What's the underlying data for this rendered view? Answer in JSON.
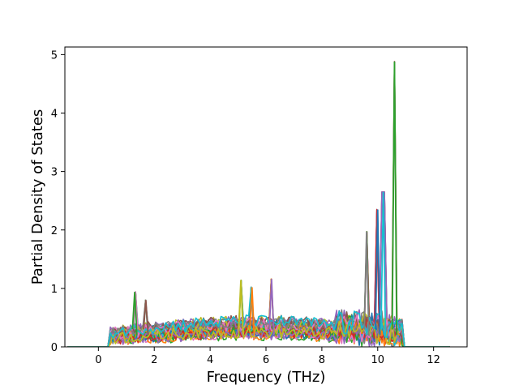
{
  "chart_data": {
    "type": "line",
    "title": "",
    "xlabel": "Frequency (THz)",
    "ylabel": "Partial Density of States",
    "xlim": [
      -1.2,
      13.2
    ],
    "ylim": [
      0,
      5.13
    ],
    "xticks": [
      0,
      2,
      4,
      6,
      8,
      10,
      12
    ],
    "yticks": [
      0,
      1,
      2,
      3,
      4,
      5
    ],
    "xtick_labels": [
      "0",
      "2",
      "4",
      "6",
      "8",
      "10",
      "12"
    ],
    "ytick_labels": [
      "0",
      "1",
      "2",
      "3",
      "4",
      "5"
    ],
    "grid": false,
    "legend": "none",
    "n_series": 40,
    "frequency_range_thz": [
      -1.1,
      12.6
    ],
    "nonzero_band_thz": [
      0.4,
      10.9
    ],
    "colors": [
      "#1f77b4",
      "#ff7f0e",
      "#2ca02c",
      "#d62728",
      "#9467bd",
      "#8c564b",
      "#e377c2",
      "#7f7f7f",
      "#bcbd22",
      "#17becf"
    ],
    "peaks": [
      {
        "x": 1.3,
        "y": 0.94
      },
      {
        "x": 1.7,
        "y": 0.8
      },
      {
        "x": 5.1,
        "y": 1.14
      },
      {
        "x": 5.5,
        "y": 1.02
      },
      {
        "x": 6.2,
        "y": 1.16
      },
      {
        "x": 9.6,
        "y": 1.97
      },
      {
        "x": 10.0,
        "y": 2.35
      },
      {
        "x": 10.2,
        "y": 2.65
      },
      {
        "x": 10.6,
        "y": 4.88
      }
    ]
  }
}
